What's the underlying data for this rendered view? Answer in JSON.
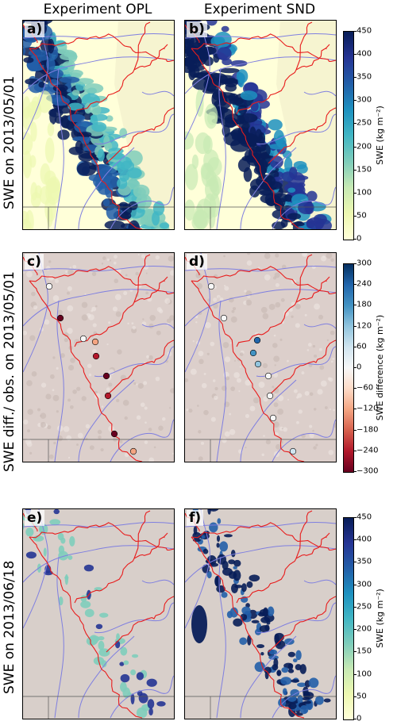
{
  "columns": [
    "Experiment OPL",
    "Experiment SND"
  ],
  "rows": [
    {
      "title": "SWE on 2013/05/01",
      "panels": [
        "a)",
        "b)"
      ]
    },
    {
      "title": "SWE diff./ obs. on 2013/05/01",
      "panels": [
        "c)",
        "d)"
      ]
    },
    {
      "title": "SWE on 2013/06/18",
      "panels": [
        "e)",
        "f)"
      ]
    }
  ],
  "colorbars": [
    {
      "label": "SWE (kg m⁻²)",
      "ticks": [
        "450",
        "400",
        "350",
        "300",
        "250",
        "200",
        "150",
        "100",
        "50",
        "0"
      ]
    },
    {
      "label": "SWE difference (kg m⁻²)",
      "ticks": [
        "300",
        "240",
        "180",
        "120",
        "60",
        "0",
        "−60",
        "−120",
        "−180",
        "−240",
        "−300"
      ]
    },
    {
      "label": "SWE (kg m⁻²)",
      "ticks": [
        "450",
        "400",
        "350",
        "300",
        "250",
        "200",
        "150",
        "100",
        "50",
        "0"
      ]
    }
  ],
  "colors": {
    "swe_scale": [
      "#ffffd9",
      "#edf8b1",
      "#c7e9b4",
      "#7fcdbb",
      "#41b6c4",
      "#1d91c0",
      "#225ea8",
      "#253494",
      "#081d58"
    ],
    "diff_scale": [
      "#67001f",
      "#b2182b",
      "#d6604d",
      "#f4a582",
      "#fddbc7",
      "#f7f7f7",
      "#d1e5f0",
      "#92c5de",
      "#4393c3",
      "#2166ac",
      "#053061"
    ],
    "rivers": "#7f7fe0",
    "basins": "#e81c1c",
    "terrain": "#dccfcb"
  }
}
